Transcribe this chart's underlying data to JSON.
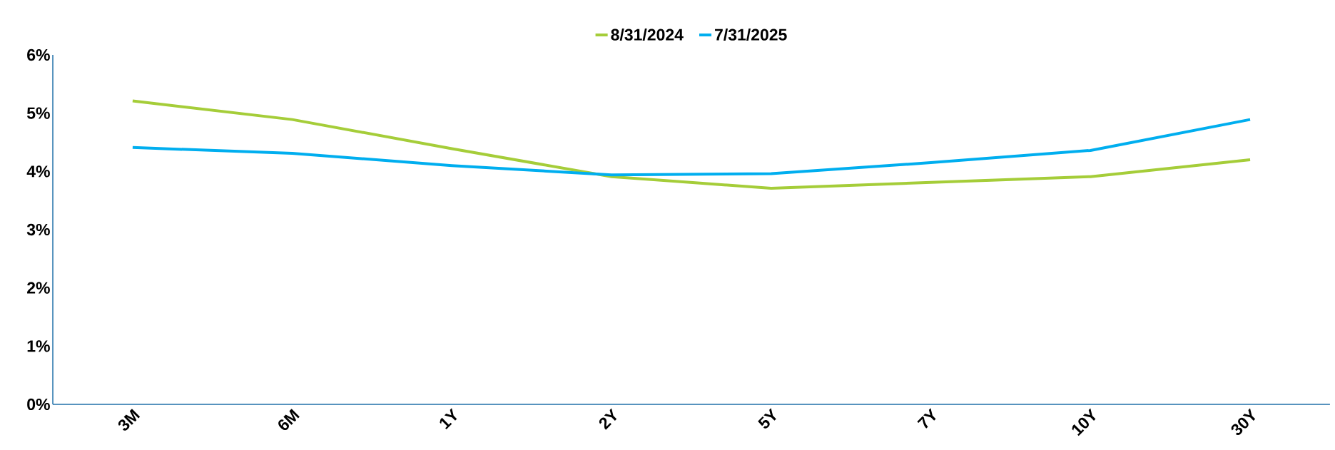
{
  "chart_data": {
    "type": "line",
    "categories": [
      "3M",
      "6M",
      "1Y",
      "2Y",
      "5Y",
      "7Y",
      "10Y",
      "30Y"
    ],
    "series": [
      {
        "name": "8/31/2024",
        "color": "#a5cd39",
        "values": [
          5.21,
          4.89,
          4.39,
          3.91,
          3.71,
          3.81,
          3.91,
          4.2
        ]
      },
      {
        "name": "7/31/2025",
        "color": "#00aeef",
        "values": [
          4.41,
          4.31,
          4.1,
          3.94,
          3.96,
          4.15,
          4.36,
          4.89
        ]
      }
    ],
    "ylim": [
      0,
      6
    ],
    "yticks": [
      {
        "value": 0,
        "label": "0%"
      },
      {
        "value": 1,
        "label": "1%"
      },
      {
        "value": 2,
        "label": "2%"
      },
      {
        "value": 3,
        "label": "3%"
      },
      {
        "value": 4,
        "label": "4%"
      },
      {
        "value": 5,
        "label": "5%"
      },
      {
        "value": 6,
        "label": "6%"
      }
    ],
    "grid": false,
    "legend": "top",
    "marker": "none",
    "line_style": "solid"
  }
}
